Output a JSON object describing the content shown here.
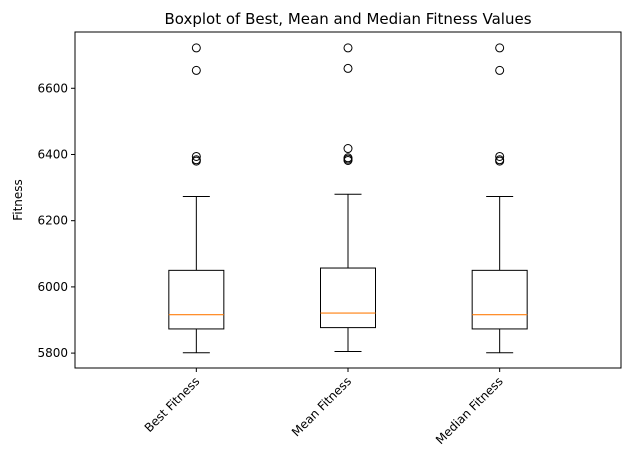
{
  "chart_data": {
    "type": "boxplot",
    "title": "Boxplot of Best, Mean and Median Fitness Values",
    "xlabel": "",
    "ylabel": "Fitness",
    "ylim": [
      5755,
      6770
    ],
    "yticks": [
      5800,
      6000,
      6200,
      6400,
      6600
    ],
    "xtick_rotation_deg": 45,
    "grid": false,
    "box_color": "#000000",
    "median_color": "#ff7f0e",
    "categories": [
      "Best Fitness",
      "Mean Fitness",
      "Median Fitness"
    ],
    "boxes": [
      {
        "name": "Best Fitness",
        "whisker_low": 5801,
        "q1": 5873,
        "median": 5916,
        "q3": 6050,
        "whisker_high": 6273,
        "outliers": [
          6380,
          6384,
          6394,
          6654,
          6722
        ]
      },
      {
        "name": "Mean Fitness",
        "whisker_low": 5805,
        "q1": 5877,
        "median": 5921,
        "q3": 6057,
        "whisker_high": 6280,
        "outliers": [
          6382,
          6386,
          6390,
          6418,
          6660,
          6722
        ]
      },
      {
        "name": "Median Fitness",
        "whisker_low": 5801,
        "q1": 5873,
        "median": 5916,
        "q3": 6050,
        "whisker_high": 6273,
        "outliers": [
          6380,
          6384,
          6394,
          6654,
          6722
        ]
      }
    ]
  }
}
